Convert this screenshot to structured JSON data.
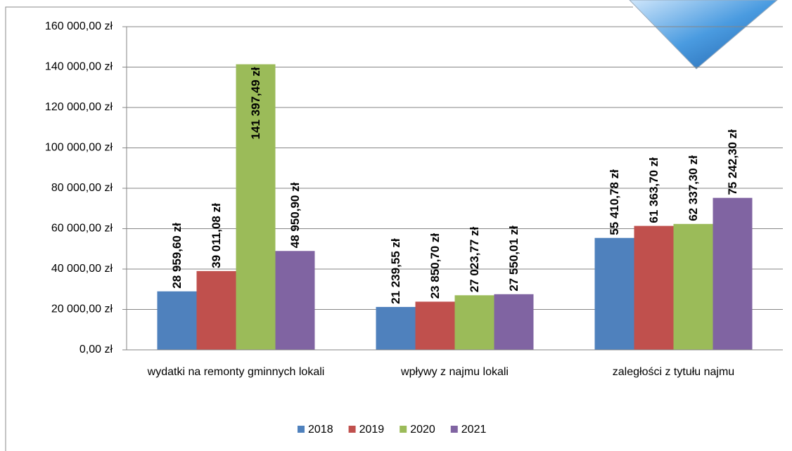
{
  "chart_data": {
    "type": "bar",
    "categories": [
      "wydatki na remonty gminnych lokali",
      "wpływy z najmu lokali",
      "zaległości z tytułu najmu"
    ],
    "series": [
      {
        "name": "2018",
        "color": "#4f81bd",
        "values": [
          28959.6,
          21239.55,
          55410.78
        ],
        "value_labels": [
          "28 959,60 zł",
          "21 239,55 zł",
          "55 410,78 zł"
        ]
      },
      {
        "name": "2019",
        "color": "#c0504d",
        "values": [
          39011.08,
          23850.7,
          61363.7
        ],
        "value_labels": [
          "39 011,08 zł",
          "23 850,70 zł",
          "61 363,70 zł"
        ]
      },
      {
        "name": "2020",
        "color": "#9bbb59",
        "values": [
          141397.49,
          27023.77,
          62337.3
        ],
        "value_labels": [
          "141 397,49 zł",
          "27 023,77 zł",
          "62 337,30 zł"
        ]
      },
      {
        "name": "2021",
        "color": "#8064a2",
        "values": [
          48950.9,
          27550.01,
          75242.3
        ],
        "value_labels": [
          "48 950,90 zł",
          "27 550,01 zł",
          "75 242,30 zł"
        ]
      }
    ],
    "ylim": [
      0,
      160000
    ],
    "yticks": [
      {
        "value": 0,
        "label": "0,00 zł"
      },
      {
        "value": 20000,
        "label": "20 000,00 zł"
      },
      {
        "value": 40000,
        "label": "40 000,00 zł"
      },
      {
        "value": 60000,
        "label": "60 000,00 zł"
      },
      {
        "value": 80000,
        "label": "80 000,00 zł"
      },
      {
        "value": 100000,
        "label": "100 000,00 zł"
      },
      {
        "value": 120000,
        "label": "120 000,00 zł"
      },
      {
        "value": 140000,
        "label": "140 000,00 zł"
      },
      {
        "value": 160000,
        "label": "160 000,00 zł"
      }
    ],
    "grid": true,
    "legend": "bottom"
  }
}
